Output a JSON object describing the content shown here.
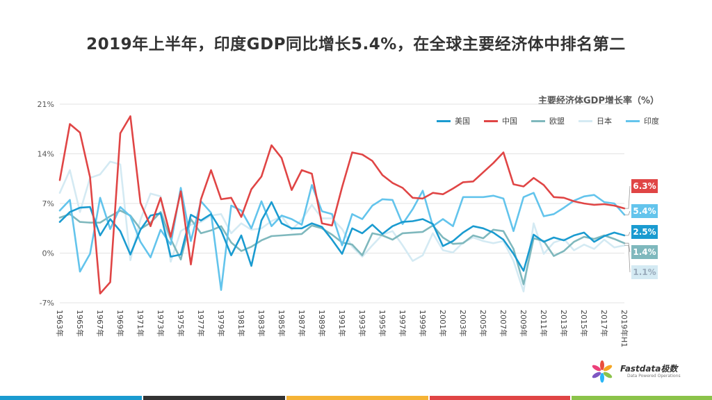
{
  "title": "2019年上半年，印度GDP同比增长5.4%，在全球主要经济体中排名第二",
  "logo": {
    "text": "Fastdata极数",
    "subtext": "Data Powered Operations"
  },
  "chart_data": {
    "type": "line",
    "title": "主要经济体GDP增长率（%）",
    "ylim": [
      -7,
      21
    ],
    "yticks": [
      "-7%",
      "0%",
      "7%",
      "14%",
      "21%"
    ],
    "ytick_values": [
      -7,
      0,
      7,
      14,
      21
    ],
    "x": [
      "1963年",
      "1964年",
      "1965年",
      "1966年",
      "1967年",
      "1968年",
      "1969年",
      "1970年",
      "1971年",
      "1972年",
      "1973年",
      "1974年",
      "1975年",
      "1976年",
      "1977年",
      "1978年",
      "1979年",
      "1980年",
      "1981年",
      "1982年",
      "1983年",
      "1984年",
      "1985年",
      "1986年",
      "1987年",
      "1988年",
      "1989年",
      "1990年",
      "1991年",
      "1992年",
      "1993年",
      "1994年",
      "1995年",
      "1996年",
      "1997年",
      "1998年",
      "1999年",
      "2000年",
      "2001年",
      "2002年",
      "2003年",
      "2004年",
      "2005年",
      "2006年",
      "2007年",
      "2008年",
      "2009年",
      "2010年",
      "2011年",
      "2012年",
      "2013年",
      "2014年",
      "2015年",
      "2016年",
      "2017年",
      "2018年",
      "2019年H1"
    ],
    "xtick_labels": [
      "1963年",
      "1965年",
      "1967年",
      "1969年",
      "1971年",
      "1973年",
      "1975年",
      "1977年",
      "1979年",
      "1981年",
      "1983年",
      "1985年",
      "1987年",
      "1989年",
      "1991年",
      "1993年",
      "1995年",
      "1997年",
      "1999年",
      "2001年",
      "2003年",
      "2005年",
      "2007年",
      "2009年",
      "2011年",
      "2013年",
      "2015年",
      "2017年",
      "2019年H1"
    ],
    "legend_position": "top-right",
    "series": [
      {
        "name": "美国",
        "color": "#1a9bd0",
        "end_label": "2.5%",
        "values": [
          4.4,
          5.8,
          6.4,
          6.5,
          2.5,
          4.8,
          3.1,
          -0.2,
          3.3,
          5.3,
          5.6,
          -0.5,
          -0.2,
          5.4,
          4.6,
          5.5,
          3.2,
          -0.3,
          2.5,
          -1.8,
          4.6,
          7.2,
          4.2,
          3.5,
          3.5,
          4.2,
          3.7,
          1.9,
          -0.1,
          3.5,
          2.8,
          4.0,
          2.7,
          3.8,
          4.4,
          4.5,
          4.8,
          4.1,
          1.0,
          1.7,
          2.9,
          3.8,
          3.5,
          2.9,
          1.9,
          -0.1,
          -2.5,
          2.6,
          1.6,
          2.2,
          1.8,
          2.5,
          2.9,
          1.6,
          2.4,
          2.9,
          2.5
        ]
      },
      {
        "name": "中国",
        "color": "#e04545",
        "end_label": "6.3%",
        "values": [
          10.3,
          18.2,
          17.0,
          10.7,
          -5.7,
          -4.1,
          16.9,
          19.3,
          7.1,
          3.8,
          7.8,
          2.3,
          8.7,
          -1.6,
          7.6,
          11.7,
          7.6,
          7.8,
          5.1,
          9.0,
          10.8,
          15.2,
          13.4,
          8.9,
          11.7,
          11.2,
          4.2,
          3.9,
          9.3,
          14.2,
          13.9,
          13.0,
          11.0,
          9.9,
          9.2,
          7.8,
          7.7,
          8.5,
          8.3,
          9.1,
          10.0,
          10.1,
          11.4,
          12.7,
          14.2,
          9.7,
          9.4,
          10.6,
          9.6,
          7.9,
          7.8,
          7.3,
          7.0,
          6.8,
          6.9,
          6.7,
          6.3
        ]
      },
      {
        "name": "欧盟",
        "color": "#7fb8bd",
        "end_label": "1.4%",
        "values": [
          5.0,
          5.5,
          4.4,
          4.3,
          4.3,
          5.2,
          6.0,
          5.3,
          3.4,
          4.3,
          5.8,
          2.0,
          -0.9,
          4.8,
          2.8,
          3.2,
          3.8,
          1.5,
          0.3,
          0.9,
          1.8,
          2.4,
          2.5,
          2.6,
          2.7,
          3.9,
          3.5,
          2.6,
          1.5,
          1.2,
          -0.3,
          2.8,
          2.5,
          1.9,
          2.8,
          2.9,
          3.0,
          3.9,
          2.2,
          1.3,
          1.4,
          2.5,
          2.1,
          3.3,
          3.1,
          0.6,
          -4.4,
          2.1,
          1.7,
          -0.4,
          0.3,
          1.6,
          2.3,
          2.0,
          2.5,
          2.0,
          1.4
        ]
      },
      {
        "name": "日本",
        "color": "#d4eaf3",
        "end_label": "1.1%",
        "values": [
          8.5,
          11.7,
          5.8,
          10.6,
          11.1,
          12.9,
          12.5,
          -1.0,
          4.7,
          8.4,
          8.0,
          -1.2,
          3.1,
          4.0,
          4.4,
          5.3,
          5.5,
          2.8,
          4.2,
          3.3,
          3.5,
          4.5,
          5.2,
          3.3,
          4.7,
          6.8,
          4.9,
          4.9,
          3.4,
          0.9,
          -0.5,
          1.1,
          2.6,
          3.1,
          1.1,
          -1.1,
          -0.3,
          2.8,
          0.4,
          0.1,
          1.5,
          2.2,
          1.7,
          1.4,
          1.7,
          -1.1,
          -5.4,
          4.2,
          -0.1,
          1.5,
          2.0,
          0.4,
          1.2,
          0.6,
          1.9,
          0.8,
          1.1
        ]
      },
      {
        "name": "印度",
        "color": "#63c4ec",
        "end_label": "5.4%",
        "values": [
          6.0,
          7.5,
          -2.6,
          -0.1,
          7.8,
          3.4,
          6.5,
          5.2,
          1.6,
          -0.6,
          3.3,
          1.2,
          9.2,
          1.7,
          7.3,
          5.7,
          -5.2,
          6.7,
          6.0,
          3.5,
          7.3,
          3.8,
          5.3,
          4.8,
          4.0,
          9.6,
          5.9,
          5.5,
          1.1,
          5.5,
          4.8,
          6.7,
          7.6,
          7.5,
          4.1,
          6.2,
          8.8,
          3.8,
          4.8,
          3.8,
          7.9,
          7.9,
          7.9,
          8.1,
          7.7,
          3.1,
          7.9,
          8.5,
          5.2,
          5.5,
          6.4,
          7.4,
          8.0,
          8.2,
          7.2,
          7.0,
          5.4
        ]
      }
    ]
  }
}
